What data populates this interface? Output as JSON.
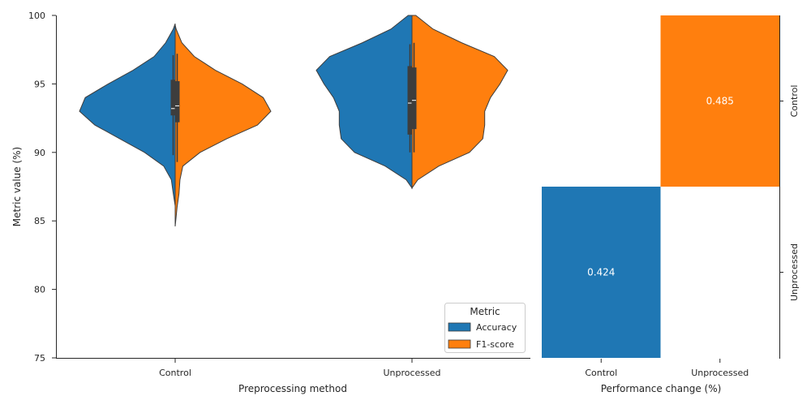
{
  "chart_data": [
    {
      "type": "violin",
      "xlabel": "Preprocessing method",
      "ylabel": "Metric value (%)",
      "ylim": [
        75,
        100
      ],
      "yticks": [
        75,
        80,
        85,
        90,
        95,
        100
      ],
      "categories": [
        "Control",
        "Unprocessed"
      ],
      "split": true,
      "legend": {
        "title": "Metric",
        "placement": "lower-right"
      },
      "series": [
        {
          "name": "Accuracy",
          "color": "#1f77b4"
        },
        {
          "name": "F1-score",
          "color": "#ff7f0e"
        }
      ],
      "violins": [
        {
          "category": "Control",
          "series": "Accuracy",
          "profile": [
            [
              86.1,
              0.0
            ],
            [
              87,
              0.02
            ],
            [
              88,
              0.04
            ],
            [
              89,
              0.12
            ],
            [
              90,
              0.32
            ],
            [
              91,
              0.58
            ],
            [
              92,
              0.84
            ],
            [
              93,
              1.0
            ],
            [
              94,
              0.94
            ],
            [
              95,
              0.7
            ],
            [
              96,
              0.44
            ],
            [
              97,
              0.22
            ],
            [
              98,
              0.1
            ],
            [
              99,
              0.02
            ],
            [
              99.4,
              0.0
            ]
          ],
          "box": {
            "q1": 92.7,
            "median": 93.2,
            "q3": 95.3,
            "whisker_low": 89.8,
            "whisker_high": 97.1
          }
        },
        {
          "category": "Control",
          "series": "F1-score",
          "profile": [
            [
              84.6,
              0.0
            ],
            [
              86,
              0.02
            ],
            [
              87,
              0.04
            ],
            [
              88,
              0.05
            ],
            [
              89,
              0.08
            ],
            [
              90,
              0.26
            ],
            [
              91,
              0.54
            ],
            [
              92,
              0.86
            ],
            [
              93,
              1.0
            ],
            [
              94,
              0.92
            ],
            [
              95,
              0.7
            ],
            [
              96,
              0.42
            ],
            [
              97,
              0.2
            ],
            [
              98,
              0.07
            ],
            [
              99,
              0.01
            ],
            [
              99.3,
              0.0
            ]
          ],
          "box": {
            "q1": 92.2,
            "median": 93.4,
            "q3": 95.2,
            "whisker_low": 89.3,
            "whisker_high": 97.2
          }
        },
        {
          "category": "Unprocessed",
          "series": "Accuracy",
          "profile": [
            [
              87.4,
              0.0
            ],
            [
              88,
              0.06
            ],
            [
              89,
              0.28
            ],
            [
              90,
              0.6
            ],
            [
              91,
              0.74
            ],
            [
              92,
              0.76
            ],
            [
              93,
              0.76
            ],
            [
              94,
              0.82
            ],
            [
              95,
              0.92
            ],
            [
              96,
              1.0
            ],
            [
              97,
              0.86
            ],
            [
              98,
              0.52
            ],
            [
              99,
              0.22
            ],
            [
              100,
              0.04
            ]
          ],
          "box": {
            "q1": 91.3,
            "median": 93.6,
            "q3": 96.3,
            "whisker_low": 90.0,
            "whisker_high": 97.9
          }
        },
        {
          "category": "Unprocessed",
          "series": "F1-score",
          "profile": [
            [
              87.4,
              0.0
            ],
            [
              88,
              0.06
            ],
            [
              89,
              0.28
            ],
            [
              90,
              0.6
            ],
            [
              91,
              0.74
            ],
            [
              92,
              0.76
            ],
            [
              93,
              0.76
            ],
            [
              94,
              0.82
            ],
            [
              95,
              0.92
            ],
            [
              96,
              1.0
            ],
            [
              97,
              0.86
            ],
            [
              98,
              0.52
            ],
            [
              99,
              0.22
            ],
            [
              100,
              0.04
            ]
          ],
          "box": {
            "q1": 91.7,
            "median": 93.8,
            "q3": 96.2,
            "whisker_low": 90.0,
            "whisker_high": 98.0
          }
        }
      ]
    },
    {
      "type": "heatmap",
      "xlabel": "Performance change (%)",
      "ylabel": "",
      "x_categories": [
        "Control",
        "Unprocessed"
      ],
      "y_categories": [
        "Control",
        "Unprocessed"
      ],
      "cells": [
        {
          "x": "Unprocessed",
          "y": "Control",
          "value": 0.485,
          "label": "0.485",
          "color": "#ff7f0e"
        },
        {
          "x": "Control",
          "y": "Unprocessed",
          "value": 0.424,
          "label": "0.424",
          "color": "#1f77b4"
        }
      ]
    }
  ]
}
